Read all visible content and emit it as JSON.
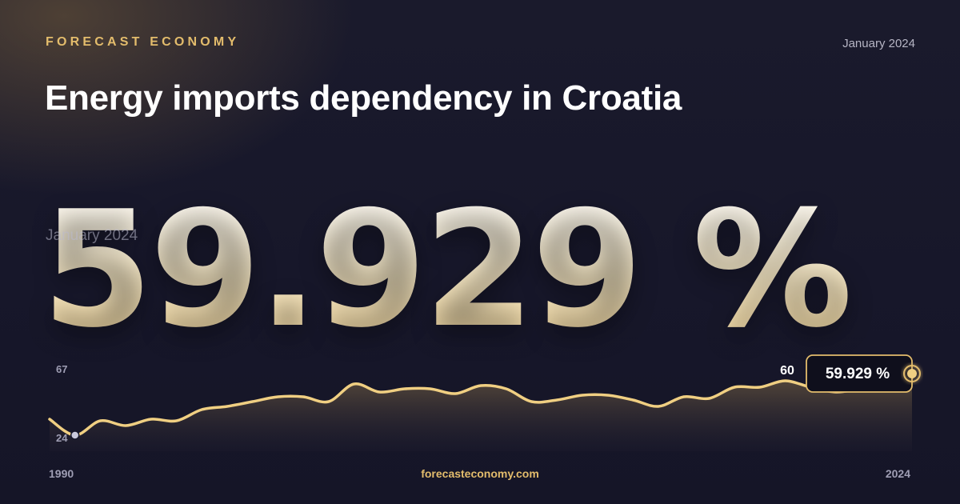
{
  "header": {
    "brand": "FORECAST ECONOMY",
    "date": "January 2024",
    "title": "Energy imports dependency in Croatia"
  },
  "headline": {
    "value": "59.929 %",
    "date": "January 2024"
  },
  "footer": {
    "url": "forecasteconomy.com"
  },
  "colors": {
    "accent": "#e3bc6c",
    "line": "#f0cf82",
    "background": "#17172a",
    "min_marker": "#c9c9dc"
  },
  "chart_data": {
    "type": "area",
    "x_start_label": "1990",
    "x_end_label": "2024",
    "xlim": [
      1990,
      2024
    ],
    "ylim": [
      24,
      67
    ],
    "y_tick_labels": [
      "67",
      "24"
    ],
    "max_label": "60",
    "last_value_label": "59.929 %",
    "x": [
      1990,
      1991,
      1992,
      1993,
      1994,
      1995,
      1996,
      1997,
      1998,
      1999,
      2000,
      2001,
      2002,
      2003,
      2004,
      2005,
      2006,
      2007,
      2008,
      2009,
      2010,
      2011,
      2012,
      2013,
      2014,
      2015,
      2016,
      2017,
      2018,
      2019,
      2020,
      2021,
      2022,
      2023,
      2024
    ],
    "y": [
      34,
      24,
      33,
      30,
      34,
      33,
      40,
      42,
      45,
      48,
      48,
      45,
      56,
      51,
      53,
      53,
      50,
      55,
      53,
      45,
      46,
      49,
      49,
      46,
      42,
      48,
      47,
      54,
      54,
      58,
      54,
      51,
      53,
      54,
      59.929
    ]
  }
}
